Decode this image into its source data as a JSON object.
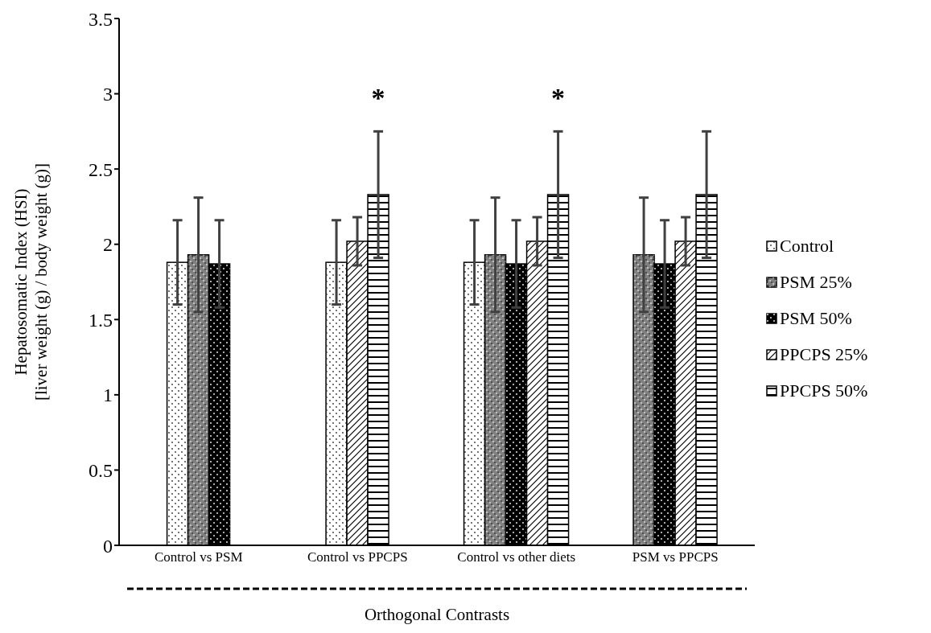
{
  "chart_data": {
    "type": "bar",
    "ylabel": "Hepatosomatic Index (HSI)\n[liver  weight (g) / body weight (g)]",
    "xlabel": "Orthogonal Contrasts",
    "categories": [
      "Control vs PSM",
      "Control vs PPCPS",
      "Control vs other diets",
      "PSM vs PPCPS"
    ],
    "series": [
      {
        "name": "Control",
        "color": "#ffffff",
        "values": [
          1.88,
          1.88,
          1.88,
          null
        ],
        "errors": [
          0.28,
          0.28,
          0.28,
          null
        ]
      },
      {
        "name": "PSM 25%",
        "color": "#808080",
        "values": [
          1.93,
          null,
          1.93,
          1.93
        ],
        "errors": [
          0.38,
          null,
          0.38,
          0.38
        ]
      },
      {
        "name": "PSM 50%",
        "color": "#000000",
        "values": [
          1.87,
          null,
          1.87,
          1.87
        ],
        "errors": [
          0.29,
          null,
          0.29,
          0.29
        ]
      },
      {
        "name": "PPCPS 25%",
        "color": "#ffffff",
        "values": [
          null,
          2.02,
          2.02,
          2.02
        ],
        "errors": [
          null,
          0.16,
          0.16,
          0.16
        ]
      },
      {
        "name": "PPCPS 50%",
        "color": "#ffffff",
        "values": [
          null,
          2.33,
          2.33,
          2.33
        ],
        "errors": [
          null,
          0.42,
          0.42,
          0.42
        ]
      }
    ],
    "ylim": [
      0,
      3.5
    ],
    "yticks": [
      0,
      0.5,
      1,
      1.5,
      2,
      2.5,
      3,
      3.5
    ],
    "grid": false,
    "legend": "right",
    "annotations": [
      "*",
      "*"
    ]
  }
}
